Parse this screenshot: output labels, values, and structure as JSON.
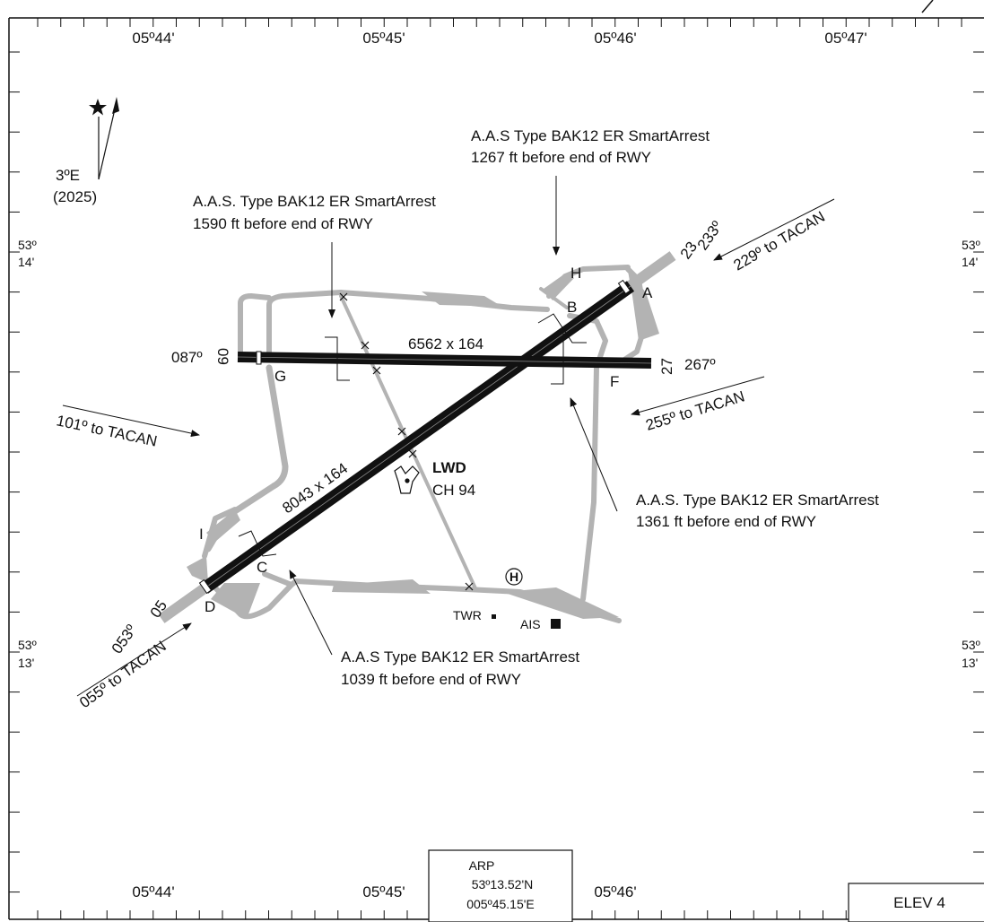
{
  "coords_top": [
    "05º44'",
    "05º45'",
    "05º46'",
    "05º47'"
  ],
  "coords_bottom": [
    "05º44'",
    "05º45'",
    "05º46'"
  ],
  "lat_upper": {
    "deg": "53º",
    "min": "14'"
  },
  "lat_lower": {
    "deg": "53º",
    "min": "13'"
  },
  "variation": {
    "value": "3ºE",
    "year": "(2025)"
  },
  "runways": {
    "rwy_0523": {
      "label": "8043 x 164",
      "end_sw": "05",
      "end_ne": "23",
      "hdg_sw": "053º",
      "hdg_ne": "233º"
    },
    "rwy_0927": {
      "label": "6562 x 164",
      "end_w": "09",
      "end_e": "27",
      "hdg_w": "087º",
      "hdg_e": "267º"
    }
  },
  "tacan_arrows": [
    "229º to TACAN",
    "255º to TACAN",
    "101º to TACAN",
    "055º to TACAN"
  ],
  "taxiways": [
    "A",
    "B",
    "C",
    "D",
    "F",
    "G",
    "H",
    "I"
  ],
  "arrestors": [
    {
      "title": "A.A.S Type BAK12 ER SmartArrest",
      "dist": "1267 ft before end of RWY"
    },
    {
      "title": "A.A.S. Type BAK12 ER SmartArrest",
      "dist": "1590 ft before end of RWY"
    },
    {
      "title": "A.A.S. Type BAK12 ER SmartArrest",
      "dist": "1361 ft before end of RWY"
    },
    {
      "title": "A.A.S Type BAK12 ER SmartArrest",
      "dist": "1039 ft before end of RWY"
    }
  ],
  "navaid": {
    "ident": "LWD",
    "channel": "CH 94"
  },
  "helipad": "H",
  "buildings": {
    "tower": "TWR",
    "ais": "AIS"
  },
  "arp": {
    "title": "ARP",
    "lat": "53º13.52'N",
    "lon": "005º45.15'E"
  },
  "elevation": "ELEV 4",
  "icons": {
    "north": "true-north-star-icon",
    "magnetic": "magnetic-north-arrow-icon",
    "tacan": "tacan-icon",
    "heli": "helipad-icon"
  }
}
